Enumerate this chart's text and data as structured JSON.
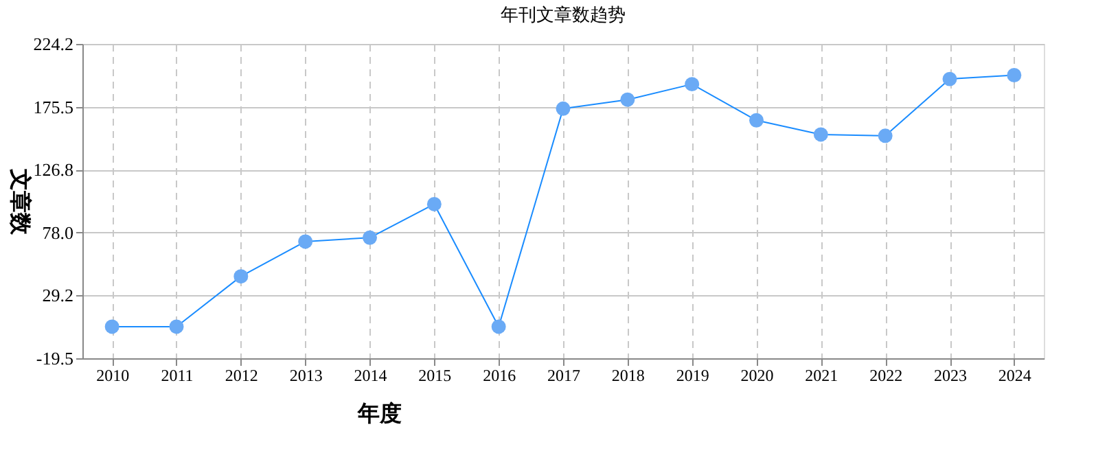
{
  "chart_data": {
    "type": "line",
    "title": "年刊文章数趋势",
    "xlabel": "年度",
    "ylabel": "文章数",
    "categories": [
      "2010",
      "2011",
      "2012",
      "2013",
      "2014",
      "2015",
      "2016",
      "2017",
      "2018",
      "2019",
      "2020",
      "2021",
      "2022",
      "2023",
      "2024"
    ],
    "series": [
      {
        "color": "#1a8cff",
        "values": [
          5,
          5,
          44,
          71,
          74,
          100,
          5,
          174,
          181,
          193,
          165,
          154,
          153,
          197,
          200
        ]
      }
    ],
    "ylim": [
      -19.5,
      224.2
    ],
    "yticks": [
      {
        "value": -19.5,
        "label": "-19.5"
      },
      29.2,
      {
        "value": 78.0,
        "label": "78.0"
      },
      126.8,
      175.5,
      224.2
    ],
    "grid": true,
    "marker": "circle",
    "line_style": "solid"
  }
}
